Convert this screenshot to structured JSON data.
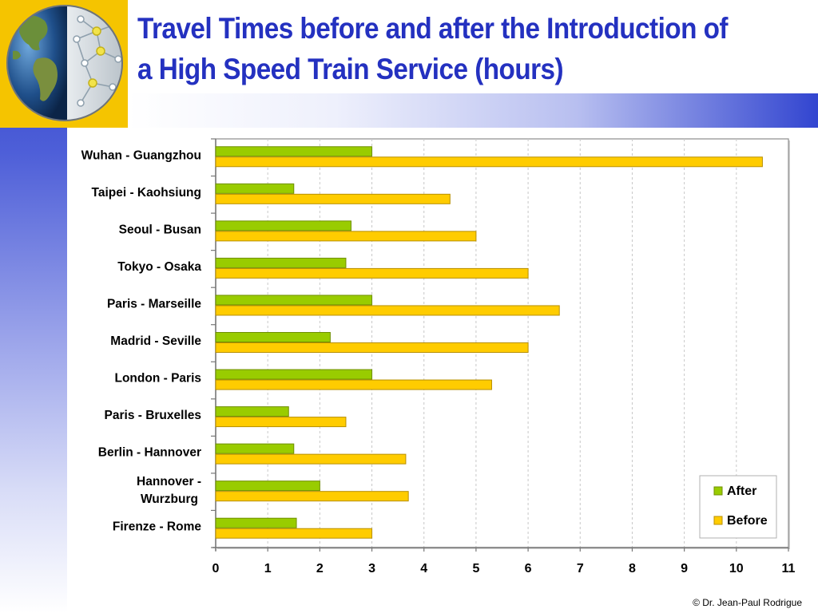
{
  "slide": {
    "title_line1": "Travel Times before and after the Introduction of",
    "title_line2": "a High Speed Train Service (hours)",
    "copyright": "© Dr. Jean-Paul Rodrigue"
  },
  "colors": {
    "after": "#99cc00",
    "before": "#ffcc00",
    "title": "#2431c0",
    "corner": "#f5c400"
  },
  "chart_data": {
    "type": "bar",
    "orientation": "horizontal",
    "categories": [
      "Wuhan - Guangzhou",
      "Taipei - Kaohsiung",
      "Seoul - Busan",
      "Tokyo - Osaka",
      "Paris - Marseille",
      "Madrid - Seville",
      "London - Paris",
      "Paris - Bruxelles",
      "Berlin - Hannover",
      "Hannover - Wurzburg",
      "Firenze - Rome"
    ],
    "series": [
      {
        "name": "After",
        "values": [
          3,
          1.5,
          2.6,
          2.5,
          3,
          2.2,
          3,
          1.4,
          1.5,
          2,
          1.55
        ]
      },
      {
        "name": "Before",
        "values": [
          10.5,
          4.5,
          5,
          6,
          6.6,
          6,
          5.3,
          2.5,
          3.65,
          3.7,
          3
        ]
      }
    ],
    "xlim": [
      0,
      11
    ],
    "xticks": [
      0,
      1,
      2,
      3,
      4,
      5,
      6,
      7,
      8,
      9,
      10,
      11
    ],
    "grid": "vertical",
    "legend": "bottom-right",
    "title": "",
    "xlabel": "",
    "ylabel": ""
  }
}
